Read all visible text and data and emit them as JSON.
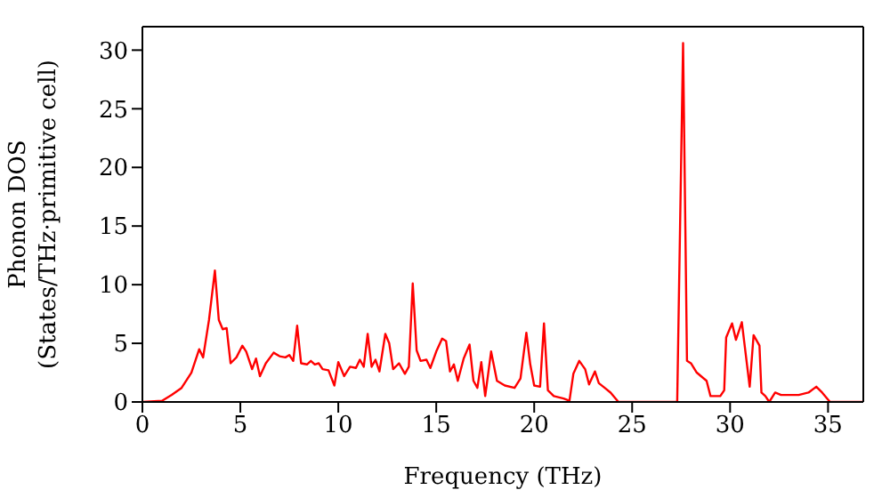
{
  "chart_data": {
    "type": "line",
    "xlabel": "Frequency (THz)",
    "ylabel": "Phonon DOS\n(States/THz·primitive cell)",
    "xlim": [
      0,
      36.8
    ],
    "xticks": [
      0,
      5,
      10,
      15,
      20,
      25,
      30,
      35
    ],
    "ylim": [
      0,
      32
    ],
    "yticks": [
      0,
      5,
      10,
      15,
      20,
      25,
      30
    ],
    "marker": "none",
    "line_style": "solid",
    "series": [
      {
        "color": "#ff0000",
        "x": [
          0,
          1,
          1.5,
          2,
          2.5,
          2.9,
          3.1,
          3.4,
          3.7,
          3.9,
          4.1,
          4.3,
          4.5,
          4.8,
          5.1,
          5.3,
          5.6,
          5.8,
          6.0,
          6.3,
          6.7,
          7.0,
          7.3,
          7.5,
          7.7,
          7.9,
          8.1,
          8.4,
          8.6,
          8.8,
          9.0,
          9.2,
          9.5,
          9.8,
          10.0,
          10.3,
          10.6,
          10.9,
          11.1,
          11.3,
          11.5,
          11.7,
          11.9,
          12.1,
          12.4,
          12.6,
          12.8,
          13.1,
          13.4,
          13.6,
          13.8,
          14.0,
          14.2,
          14.5,
          14.7,
          15.0,
          15.3,
          15.5,
          15.7,
          15.9,
          16.1,
          16.4,
          16.7,
          16.9,
          17.1,
          17.3,
          17.5,
          17.8,
          18.1,
          18.5,
          19.0,
          19.3,
          19.6,
          19.8,
          20.0,
          20.3,
          20.5,
          20.7,
          21.0,
          21.5,
          21.8,
          22.0,
          22.3,
          22.6,
          22.8,
          23.1,
          23.3,
          23.6,
          23.9,
          24.3,
          27.3,
          27.6,
          27.8,
          28.0,
          28.3,
          28.8,
          29.0,
          29.5,
          29.7,
          29.8,
          30.1,
          30.3,
          30.6,
          31.0,
          31.2,
          31.5,
          31.6,
          31.8,
          32.0,
          32.3,
          32.6,
          33.5,
          34.0,
          34.4,
          34.7,
          35.1,
          36.8
        ],
        "values": [
          0,
          0.1,
          0.6,
          1.2,
          2.5,
          4.5,
          3.8,
          7,
          11.2,
          7,
          6.2,
          6.3,
          3.3,
          3.8,
          4.8,
          4.3,
          2.8,
          3.7,
          2.2,
          3.3,
          4.2,
          3.9,
          3.8,
          4.0,
          3.5,
          6.5,
          3.3,
          3.2,
          3.5,
          3.2,
          3.3,
          2.8,
          2.7,
          1.4,
          3.4,
          2.2,
          3.0,
          2.9,
          3.6,
          3.0,
          5.8,
          3.0,
          3.6,
          2.6,
          5.8,
          5.0,
          2.8,
          3.3,
          2.4,
          3.0,
          10.1,
          4.4,
          3.5,
          3.6,
          2.9,
          4.3,
          5.4,
          5.2,
          2.6,
          3.2,
          1.8,
          3.7,
          4.9,
          1.8,
          1.2,
          3.4,
          0.5,
          4.3,
          1.8,
          1.4,
          1.2,
          2.0,
          5.9,
          3.2,
          1.4,
          1.3,
          6.7,
          1.0,
          0.5,
          0.3,
          0.1,
          2.4,
          3.5,
          2.8,
          1.5,
          2.6,
          1.6,
          1.2,
          0.8,
          0,
          0,
          30.6,
          3.5,
          3.3,
          2.5,
          1.8,
          0.5,
          0.5,
          1.0,
          5.5,
          6.7,
          5.3,
          6.8,
          1.3,
          5.7,
          4.8,
          0.8,
          0.5,
          0,
          0.8,
          0.6,
          0.6,
          0.8,
          1.3,
          0.8,
          0,
          0
        ]
      }
    ]
  }
}
